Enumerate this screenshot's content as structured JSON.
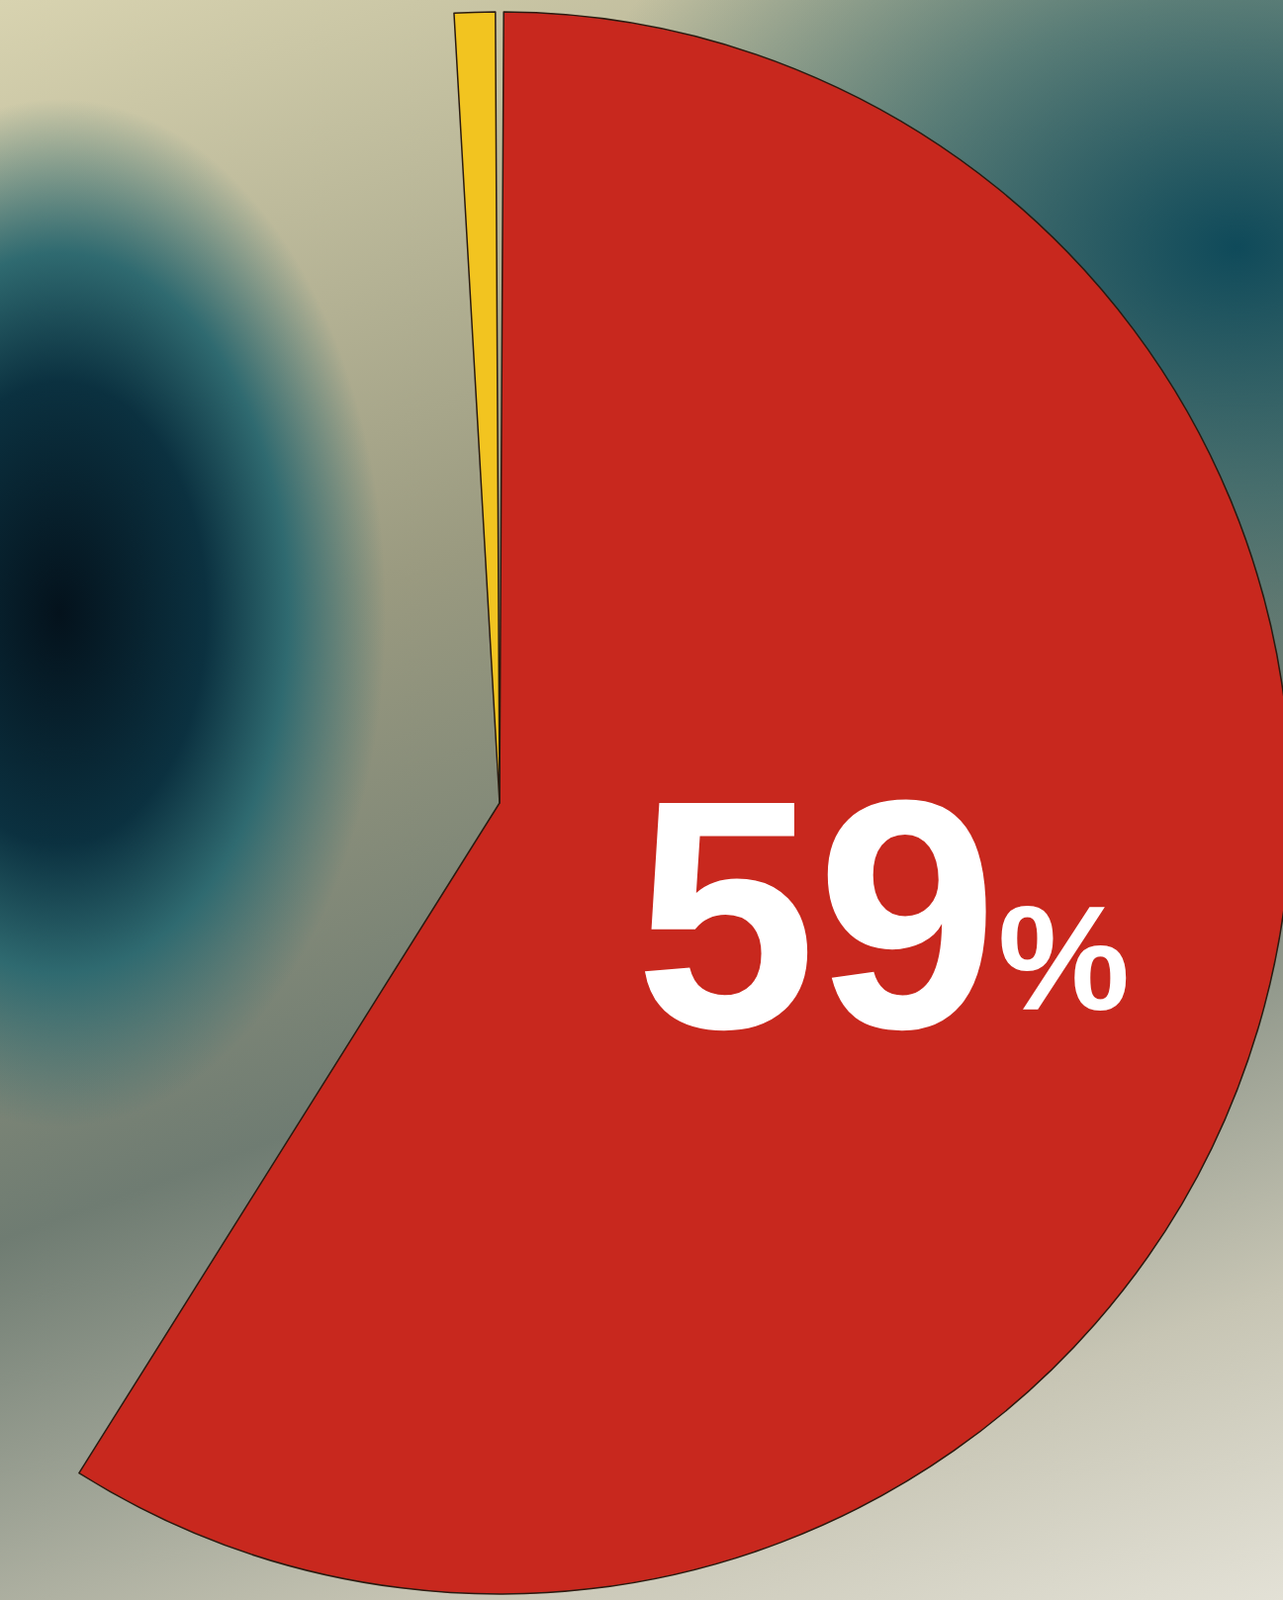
{
  "chart_data": {
    "type": "pie",
    "values": [
      59,
      40,
      1
    ],
    "value_labels": [
      "59%",
      null,
      null
    ],
    "colors": [
      "#c8281e",
      "rgba(0,0,0,0)",
      "#f2c420"
    ],
    "data_labels": true
  }
}
